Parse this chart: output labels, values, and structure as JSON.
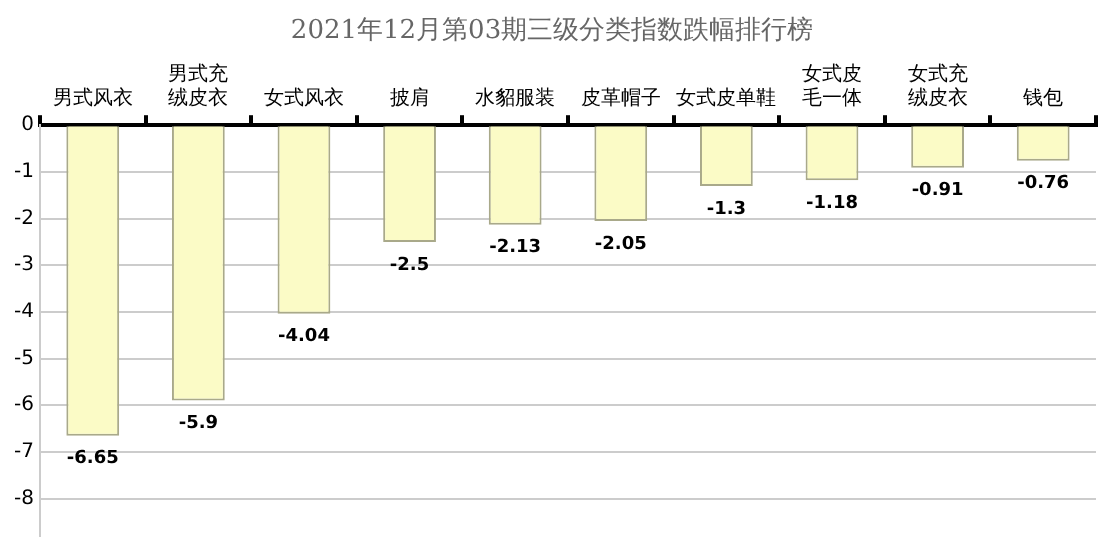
{
  "chart_data": {
    "type": "bar",
    "title": "2021年12月第03期三级分类指数跌幅排行榜",
    "categories": [
      "男式风衣",
      "男式充绒皮衣",
      "女式风衣",
      "披肩",
      "水貂服装",
      "皮革帽子",
      "女式皮单鞋",
      "女式皮毛一体",
      "女式充绒皮衣",
      "钱包"
    ],
    "values": [
      -6.65,
      -5.9,
      -4.04,
      -2.5,
      -2.13,
      -2.05,
      -1.3,
      -1.18,
      -0.91,
      -0.76
    ],
    "color": "#fbfbc6",
    "ylim": [
      -8.8,
      0
    ],
    "yticks": [
      0,
      -1,
      -2,
      -3,
      -4,
      -5,
      -6,
      -7,
      -8
    ],
    "grid": "y",
    "legend": false,
    "data_labels": true
  }
}
